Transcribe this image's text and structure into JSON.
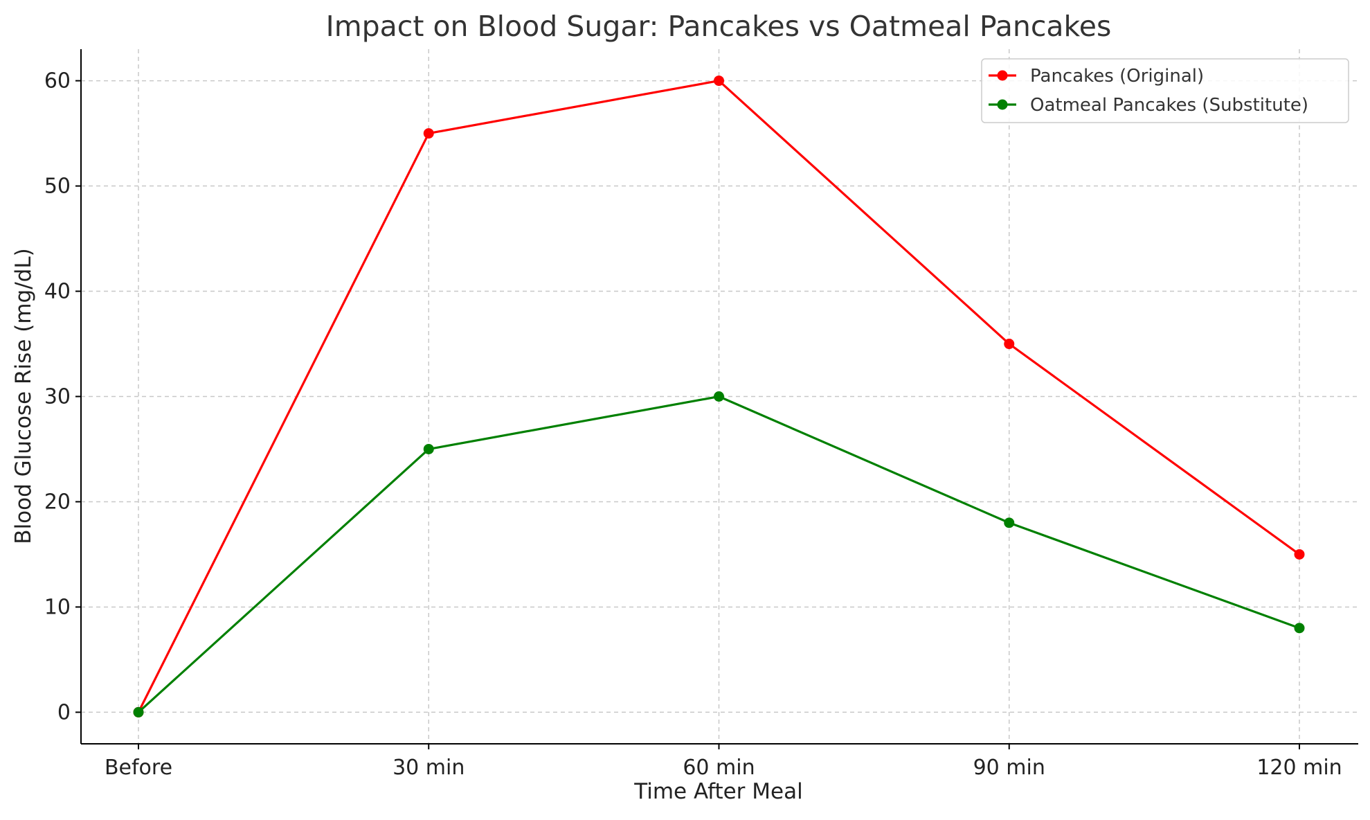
{
  "chart_data": {
    "type": "line",
    "title": "Impact on Blood Sugar: Pancakes vs Oatmeal Pancakes",
    "xlabel": "Time After Meal",
    "ylabel": "Blood Glucose Rise (mg/dL)",
    "categories": [
      "Before",
      "30 min",
      "60 min",
      "90 min",
      "120 min"
    ],
    "ylim": [
      -3,
      63
    ],
    "yticks": [
      0,
      10,
      20,
      30,
      40,
      50,
      60
    ],
    "grid": true,
    "legend_position": "top-right",
    "series": [
      {
        "name": "Pancakes (Original)",
        "color": "#ff0000",
        "values": [
          0,
          55,
          60,
          35,
          15
        ]
      },
      {
        "name": "Oatmeal Pancakes (Substitute)",
        "color": "#008000",
        "values": [
          0,
          25,
          30,
          18,
          8
        ]
      }
    ]
  }
}
